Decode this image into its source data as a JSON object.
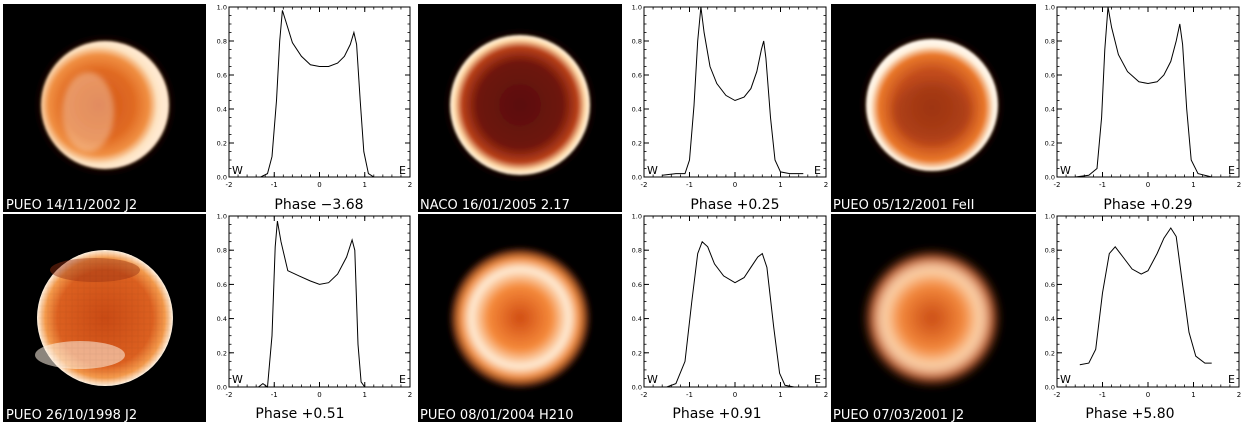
{
  "figure": {
    "panels": [
      {
        "image_label": "PUEO 14/11/2002 J2",
        "phase_label": "Phase −3.68",
        "disk_style": "smooth",
        "profile_series": "p1"
      },
      {
        "image_label": "NACO 16/01/2005 2.17",
        "phase_label": "Phase +0.25",
        "disk_style": "limb-dark",
        "profile_series": "p2"
      },
      {
        "image_label": "PUEO 05/12/2001 FeII",
        "phase_label": "Phase +0.29",
        "disk_style": "bright-limb",
        "profile_series": "p3"
      },
      {
        "image_label": "PUEO 26/10/1998 J2",
        "phase_label": "Phase +0.51",
        "disk_style": "pixelated",
        "profile_series": "p4"
      },
      {
        "image_label": "PUEO 08/01/2004 H210",
        "phase_label": "Phase +0.91",
        "disk_style": "blurred",
        "profile_series": "p5"
      },
      {
        "image_label": "PUEO 07/03/2001 J2",
        "phase_label": "Phase +5.80",
        "disk_style": "very-blurred",
        "profile_series": "p6"
      }
    ],
    "west_label": "W",
    "east_label": "E",
    "x_ticks": [
      "-2",
      "-1",
      "0",
      "1",
      "2"
    ],
    "y_ticks": [
      "0.0",
      "0.2",
      "0.4",
      "0.6",
      "0.8",
      "1.0"
    ],
    "colors": {
      "disk_core": "#c94a14",
      "disk_mid": "#e9782a",
      "disk_limb": "#fff5e6",
      "sky": "#000000",
      "profile_line": "#000000"
    }
  },
  "chart_data": [
    {
      "type": "line",
      "series": [
        {
          "values": [
            [
              -1.9,
              0.0
            ],
            [
              -1.3,
              0.0
            ],
            [
              -1.15,
              0.02
            ],
            [
              -1.05,
              0.12
            ],
            [
              -0.95,
              0.45
            ],
            [
              -0.88,
              0.8
            ],
            [
              -0.82,
              0.98
            ],
            [
              -0.75,
              0.92
            ],
            [
              -0.6,
              0.79
            ],
            [
              -0.4,
              0.71
            ],
            [
              -0.2,
              0.66
            ],
            [
              0.0,
              0.65
            ],
            [
              0.2,
              0.65
            ],
            [
              0.4,
              0.67
            ],
            [
              0.55,
              0.71
            ],
            [
              0.68,
              0.78
            ],
            [
              0.76,
              0.85
            ],
            [
              0.82,
              0.78
            ],
            [
              0.9,
              0.45
            ],
            [
              0.98,
              0.15
            ],
            [
              1.08,
              0.02
            ],
            [
              1.2,
              0.0
            ],
            [
              1.9,
              0.0
            ]
          ]
        }
      ],
      "xlim": [
        -2,
        2
      ],
      "ylim": [
        0,
        1
      ]
    },
    {
      "type": "line",
      "series": [
        {
          "values": [
            [
              -1.6,
              0.01
            ],
            [
              -1.3,
              0.02
            ],
            [
              -1.1,
              0.02
            ],
            [
              -1.0,
              0.1
            ],
            [
              -0.9,
              0.42
            ],
            [
              -0.82,
              0.8
            ],
            [
              -0.75,
              1.0
            ],
            [
              -0.68,
              0.85
            ],
            [
              -0.55,
              0.65
            ],
            [
              -0.4,
              0.55
            ],
            [
              -0.2,
              0.48
            ],
            [
              0.0,
              0.45
            ],
            [
              0.2,
              0.47
            ],
            [
              0.35,
              0.52
            ],
            [
              0.48,
              0.62
            ],
            [
              0.58,
              0.75
            ],
            [
              0.63,
              0.8
            ],
            [
              0.68,
              0.7
            ],
            [
              0.78,
              0.35
            ],
            [
              0.88,
              0.1
            ],
            [
              1.0,
              0.03
            ],
            [
              1.2,
              0.02
            ],
            [
              1.5,
              0.02
            ]
          ]
        }
      ],
      "xlim": [
        -2,
        2
      ],
      "ylim": [
        0,
        1
      ]
    },
    {
      "type": "line",
      "series": [
        {
          "values": [
            [
              -1.6,
              0.0
            ],
            [
              -1.3,
              0.01
            ],
            [
              -1.12,
              0.05
            ],
            [
              -1.02,
              0.35
            ],
            [
              -0.95,
              0.75
            ],
            [
              -0.88,
              1.0
            ],
            [
              -0.8,
              0.88
            ],
            [
              -0.65,
              0.72
            ],
            [
              -0.45,
              0.62
            ],
            [
              -0.2,
              0.56
            ],
            [
              0.0,
              0.55
            ],
            [
              0.2,
              0.56
            ],
            [
              0.35,
              0.6
            ],
            [
              0.5,
              0.68
            ],
            [
              0.62,
              0.8
            ],
            [
              0.7,
              0.9
            ],
            [
              0.76,
              0.78
            ],
            [
              0.85,
              0.4
            ],
            [
              0.95,
              0.1
            ],
            [
              1.1,
              0.02
            ],
            [
              1.4,
              0.0
            ]
          ]
        }
      ],
      "xlim": [
        -2,
        2
      ],
      "ylim": [
        0,
        1
      ]
    },
    {
      "type": "line",
      "series": [
        {
          "values": [
            [
              -1.6,
              0.0
            ],
            [
              -1.35,
              0.0
            ],
            [
              -1.25,
              0.02
            ],
            [
              -1.15,
              0.0
            ],
            [
              -1.05,
              0.3
            ],
            [
              -0.98,
              0.82
            ],
            [
              -0.93,
              0.97
            ],
            [
              -0.85,
              0.85
            ],
            [
              -0.7,
              0.68
            ],
            [
              -0.45,
              0.65
            ],
            [
              -0.2,
              0.62
            ],
            [
              0.0,
              0.6
            ],
            [
              0.2,
              0.61
            ],
            [
              0.4,
              0.66
            ],
            [
              0.6,
              0.76
            ],
            [
              0.72,
              0.86
            ],
            [
              0.78,
              0.8
            ],
            [
              0.85,
              0.25
            ],
            [
              0.92,
              0.03
            ],
            [
              1.0,
              0.0
            ],
            [
              1.2,
              0.0
            ],
            [
              1.4,
              0.0
            ]
          ]
        }
      ],
      "xlim": [
        -2,
        2
      ],
      "ylim": [
        0,
        1
      ]
    },
    {
      "type": "line",
      "series": [
        {
          "values": [
            [
              -1.5,
              0.0
            ],
            [
              -1.3,
              0.02
            ],
            [
              -1.1,
              0.15
            ],
            [
              -0.95,
              0.5
            ],
            [
              -0.82,
              0.78
            ],
            [
              -0.72,
              0.85
            ],
            [
              -0.6,
              0.82
            ],
            [
              -0.45,
              0.72
            ],
            [
              -0.25,
              0.65
            ],
            [
              0.0,
              0.61
            ],
            [
              0.2,
              0.64
            ],
            [
              0.35,
              0.7
            ],
            [
              0.5,
              0.76
            ],
            [
              0.6,
              0.78
            ],
            [
              0.7,
              0.7
            ],
            [
              0.85,
              0.35
            ],
            [
              0.98,
              0.08
            ],
            [
              1.1,
              0.01
            ],
            [
              1.3,
              0.0
            ]
          ]
        }
      ],
      "xlim": [
        -2,
        2
      ],
      "ylim": [
        0,
        1
      ]
    },
    {
      "type": "line",
      "series": [
        {
          "values": [
            [
              -1.5,
              0.13
            ],
            [
              -1.3,
              0.14
            ],
            [
              -1.15,
              0.22
            ],
            [
              -1.0,
              0.55
            ],
            [
              -0.85,
              0.78
            ],
            [
              -0.72,
              0.82
            ],
            [
              -0.55,
              0.76
            ],
            [
              -0.35,
              0.69
            ],
            [
              -0.15,
              0.66
            ],
            [
              0.0,
              0.68
            ],
            [
              0.2,
              0.78
            ],
            [
              0.35,
              0.87
            ],
            [
              0.5,
              0.93
            ],
            [
              0.62,
              0.88
            ],
            [
              0.75,
              0.62
            ],
            [
              0.9,
              0.32
            ],
            [
              1.05,
              0.18
            ],
            [
              1.25,
              0.14
            ],
            [
              1.4,
              0.14
            ]
          ]
        }
      ],
      "xlim": [
        -2,
        2
      ],
      "ylim": [
        0,
        1
      ]
    }
  ]
}
